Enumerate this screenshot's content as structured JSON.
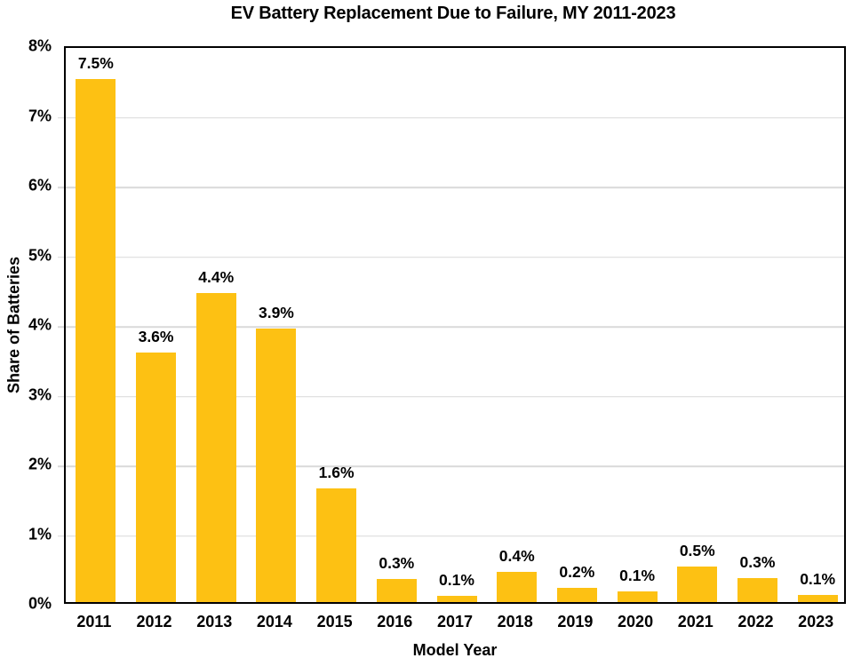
{
  "page": {
    "background": "#FFFFFF"
  },
  "chart_data": {
    "type": "bar",
    "title": "EV Battery Replacement Due to Failure, MY 2011-2023",
    "xlabel": "Model Year",
    "ylabel": "Share of Batteries",
    "categories": [
      "2011",
      "2012",
      "2013",
      "2014",
      "2015",
      "2016",
      "2017",
      "2018",
      "2019",
      "2020",
      "2021",
      "2022",
      "2023"
    ],
    "values": [
      7.5,
      3.6,
      4.4,
      3.9,
      1.6,
      0.3,
      0.1,
      0.4,
      0.2,
      0.1,
      0.5,
      0.3,
      0.1
    ],
    "data_labels": [
      "7.5%",
      "3.6%",
      "4.4%",
      "3.9%",
      "1.6%",
      "0.3%",
      "0.1%",
      "0.4%",
      "0.2%",
      "0.1%",
      "0.5%",
      "0.3%",
      "0.1%"
    ],
    "bar_heights_precise": [
      7.5,
      3.58,
      4.43,
      3.93,
      1.63,
      0.33,
      0.09,
      0.43,
      0.21,
      0.15,
      0.51,
      0.35,
      0.1
    ],
    "y_ticks": [
      {
        "value": 0,
        "label": "0%"
      },
      {
        "value": 1,
        "label": "1%"
      },
      {
        "value": 2,
        "label": "2%"
      },
      {
        "value": 3,
        "label": "3%"
      },
      {
        "value": 4,
        "label": "4%"
      },
      {
        "value": 5,
        "label": "5%"
      },
      {
        "value": 6,
        "label": "6%"
      },
      {
        "value": 7,
        "label": "7%"
      },
      {
        "value": 8,
        "label": "8%"
      }
    ],
    "ylim": [
      0,
      8
    ],
    "grid": "horizontal-major",
    "legend_position": "none",
    "colors": {
      "bar": "#FDC113",
      "gridline": "#D9D9D9",
      "axis": "#000000",
      "text": "#000000"
    }
  }
}
